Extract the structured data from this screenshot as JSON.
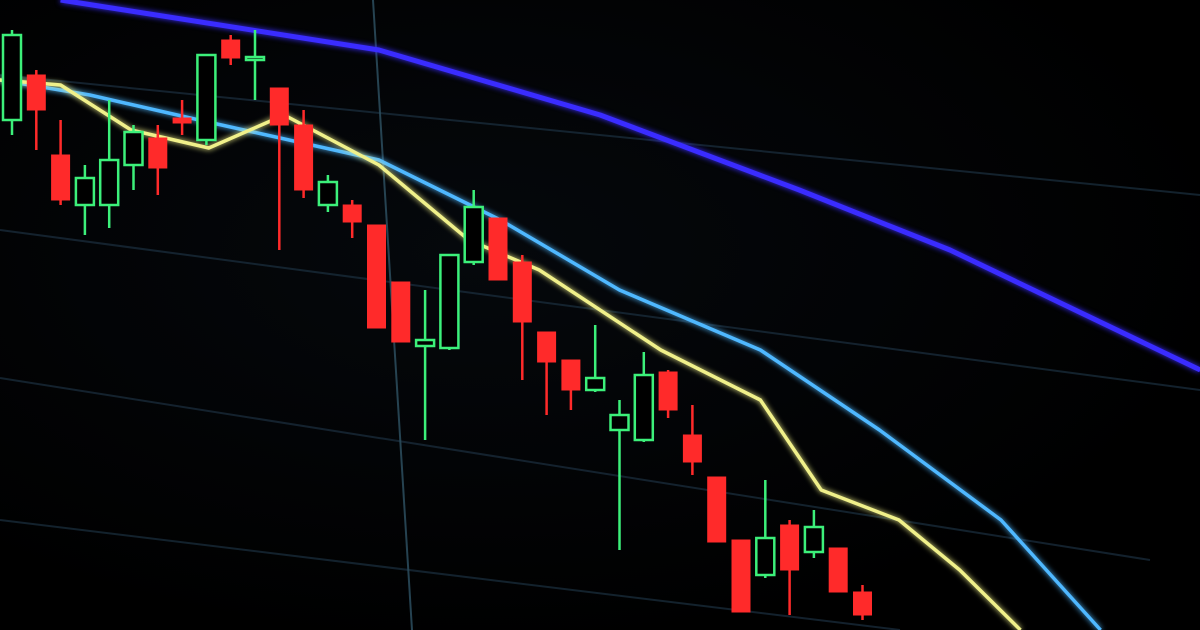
{
  "chart_data": {
    "type": "candlestick",
    "title": "",
    "xlabel": "",
    "ylabel": "",
    "grid": true,
    "legend": "none",
    "colors": {
      "up": "#3cf07a",
      "down": "#ff2a2a",
      "ma_slow": "#3a2cff",
      "ma_mid": "#4fb8ff",
      "ma_fast": "#f0f08a",
      "grid": "#1c3040"
    },
    "candles": [
      {
        "t": 0,
        "o": 510,
        "h": 600,
        "l": 495,
        "c": 595
      },
      {
        "t": 1,
        "o": 555,
        "h": 560,
        "l": 480,
        "c": 520
      },
      {
        "t": 2,
        "o": 475,
        "h": 510,
        "l": 425,
        "c": 430
      },
      {
        "t": 3,
        "o": 425,
        "h": 465,
        "l": 395,
        "c": 452
      },
      {
        "t": 4,
        "o": 425,
        "h": 530,
        "l": 402,
        "c": 470
      },
      {
        "t": 5,
        "o": 465,
        "h": 505,
        "l": 440,
        "c": 498
      },
      {
        "t": 6,
        "o": 492,
        "h": 505,
        "l": 435,
        "c": 462
      },
      {
        "t": 7,
        "o": 512,
        "h": 530,
        "l": 495,
        "c": 507
      },
      {
        "t": 8,
        "o": 490,
        "h": 575,
        "l": 485,
        "c": 575
      },
      {
        "t": 9,
        "o": 590,
        "h": 595,
        "l": 565,
        "c": 572
      },
      {
        "t": 10,
        "o": 570,
        "h": 600,
        "l": 530,
        "c": 573
      },
      {
        "t": 11,
        "o": 542,
        "h": 542,
        "l": 380,
        "c": 505
      },
      {
        "t": 12,
        "o": 505,
        "h": 520,
        "l": 432,
        "c": 440
      },
      {
        "t": 13,
        "o": 425,
        "h": 455,
        "l": 418,
        "c": 448
      },
      {
        "t": 14,
        "o": 425,
        "h": 430,
        "l": 392,
        "c": 408
      },
      {
        "t": 15,
        "o": 405,
        "h": 405,
        "l": 302,
        "c": 302
      },
      {
        "t": 16,
        "o": 348,
        "h": 348,
        "l": 288,
        "c": 288
      },
      {
        "t": 17,
        "o": 284,
        "h": 340,
        "l": 190,
        "c": 290
      },
      {
        "t": 18,
        "o": 282,
        "h": 375,
        "l": 280,
        "c": 375
      },
      {
        "t": 19,
        "o": 368,
        "h": 440,
        "l": 365,
        "c": 423
      },
      {
        "t": 20,
        "o": 412,
        "h": 412,
        "l": 350,
        "c": 350
      },
      {
        "t": 21,
        "o": 368,
        "h": 375,
        "l": 250,
        "c": 308
      },
      {
        "t": 22,
        "o": 298,
        "h": 298,
        "l": 215,
        "c": 268
      },
      {
        "t": 23,
        "o": 270,
        "h": 270,
        "l": 220,
        "c": 240
      },
      {
        "t": 24,
        "o": 240,
        "h": 305,
        "l": 238,
        "c": 252
      },
      {
        "t": 25,
        "o": 200,
        "h": 230,
        "l": 80,
        "c": 215
      },
      {
        "t": 26,
        "o": 190,
        "h": 278,
        "l": 188,
        "c": 255
      },
      {
        "t": 27,
        "o": 258,
        "h": 260,
        "l": 212,
        "c": 220
      },
      {
        "t": 28,
        "o": 195,
        "h": 225,
        "l": 155,
        "c": 168
      },
      {
        "t": 29,
        "o": 153,
        "h": 153,
        "l": 88,
        "c": 88
      },
      {
        "t": 30,
        "o": 90,
        "h": 90,
        "l": 18,
        "c": 18
      },
      {
        "t": 31,
        "o": 55,
        "h": 150,
        "l": 52,
        "c": 92
      },
      {
        "t": 32,
        "o": 105,
        "h": 110,
        "l": 15,
        "c": 60
      },
      {
        "t": 33,
        "o": 78,
        "h": 120,
        "l": 72,
        "c": 103
      },
      {
        "t": 34,
        "o": 82,
        "h": 82,
        "l": 38,
        "c": 38
      },
      {
        "t": 35,
        "o": 38,
        "h": 45,
        "l": 10,
        "c": 15
      }
    ],
    "lines": [
      {
        "key": "ma_slow",
        "points": [
          [
            2,
            630
          ],
          [
            15.1,
            580
          ],
          [
            24.2,
            515
          ],
          [
            32.4,
            440
          ],
          [
            38.6,
            380
          ],
          [
            48.9,
            260
          ]
        ]
      },
      {
        "key": "ma_mid",
        "points": [
          [
            -0.5,
            550
          ],
          [
            3.2,
            535
          ],
          [
            7.7,
            510
          ],
          [
            15.1,
            470
          ],
          [
            20.1,
            410
          ],
          [
            25,
            340
          ],
          [
            30.8,
            280
          ],
          [
            35.7,
            200
          ],
          [
            40.7,
            110
          ],
          [
            44.8,
            0
          ]
        ]
      },
      {
        "key": "ma_fast",
        "points": [
          [
            -0.5,
            550
          ],
          [
            2,
            545
          ],
          [
            4.9,
            500
          ],
          [
            8.1,
            482
          ],
          [
            11.2,
            515
          ],
          [
            15.1,
            465
          ],
          [
            18.8,
            390
          ],
          [
            21.7,
            360
          ],
          [
            26.7,
            280
          ],
          [
            30.8,
            230
          ],
          [
            33.3,
            140
          ],
          [
            36.5,
            110
          ],
          [
            39,
            60
          ],
          [
            41.5,
            0
          ]
        ]
      }
    ],
    "ylim": [
      0,
      630
    ]
  }
}
